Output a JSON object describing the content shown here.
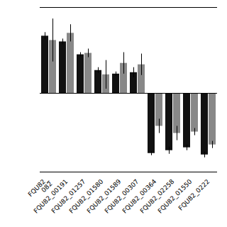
{
  "chart_data": {
    "type": "bar",
    "categories": [
      "FQU82_\n082",
      "FQU82_00191",
      "FQU82_01257",
      "FQU82_01580",
      "FQU82_01589",
      "FQU82_00307",
      "FQU82_00364",
      "FQU82_02258",
      "FQU82_01550",
      "FQU82_0222"
    ],
    "series": [
      {
        "color": "#111111",
        "values": [
          4.0,
          3.6,
          2.7,
          1.6,
          1.35,
          1.45,
          -4.2,
          -4.0,
          -3.8,
          -4.3
        ],
        "errors": [
          0.25,
          0.2,
          0.15,
          0.2,
          0.15,
          0.35,
          0.15,
          0.25,
          0.2,
          0.2
        ]
      },
      {
        "color": "#888888",
        "values": [
          3.7,
          4.2,
          2.8,
          1.3,
          2.1,
          2.0,
          -2.3,
          -2.8,
          -2.7,
          -3.6
        ],
        "errors": [
          1.5,
          0.6,
          0.3,
          1.0,
          0.75,
          0.75,
          0.5,
          0.5,
          0.25,
          0.25
        ]
      }
    ],
    "ylim": [
      -5.5,
      6.0
    ],
    "grid": false,
    "tick_labels": "x"
  }
}
